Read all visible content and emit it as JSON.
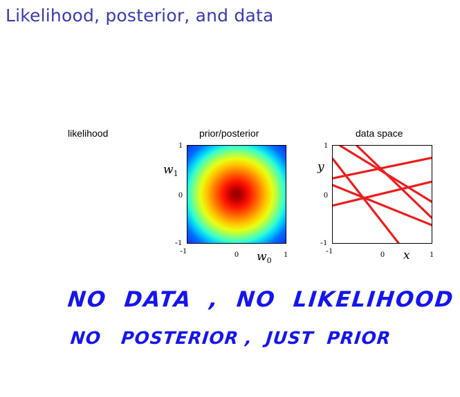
{
  "slide": {
    "title": "Likelihood, posterior, and data"
  },
  "panels": {
    "likelihood": {
      "title": "likelihood"
    },
    "posterior": {
      "title": "prior/posterior",
      "y_label": "w",
      "y_sub": "1",
      "x_label": "w",
      "x_sub": "0",
      "ticks": {
        "y_top": "1",
        "y_mid": "0",
        "y_bottom": "-1",
        "x_left": "-1",
        "x_mid": "0",
        "x_right": "1"
      }
    },
    "data_space": {
      "title": "data space",
      "y_label": "y",
      "x_label": "x",
      "ticks": {
        "y_top": "1",
        "y_mid": "0",
        "y_bottom": "-1",
        "x_left": "-1",
        "x_mid": "0",
        "x_right": "1"
      },
      "line_color": "#ee1c1c"
    }
  },
  "chart_data": [
    {
      "type": "heatmap",
      "title": "prior/posterior",
      "xlabel": "w0",
      "ylabel": "w1",
      "xlim": [
        -1,
        1
      ],
      "ylim": [
        -1,
        1
      ],
      "description_values": {
        "peak_at": [
          0,
          0
        ],
        "colormap": "jet",
        "shape": "isotropic gaussian"
      }
    },
    {
      "type": "line",
      "title": "data space",
      "xlabel": "x",
      "ylabel": "y",
      "xlim": [
        -1,
        1
      ],
      "ylim": [
        -1,
        1
      ],
      "series": [
        {
          "x": [
            -1,
            0.33
          ],
          "y": [
            0.73,
            -1
          ]
        },
        {
          "x": [
            -1,
            1
          ],
          "y": [
            0.33,
            0.75
          ]
        },
        {
          "x": [
            -1,
            1
          ],
          "y": [
            0.19,
            -0.63
          ]
        },
        {
          "x": [
            -0.51,
            1
          ],
          "y": [
            1,
            -0.48
          ]
        },
        {
          "x": [
            -0.85,
            1
          ],
          "y": [
            1,
            -0.15
          ]
        },
        {
          "x": [
            -1,
            1
          ],
          "y": [
            -0.23,
            0.26
          ]
        }
      ]
    }
  ],
  "annotation": {
    "line1": "NO  DATA  ,  NO  LIKELIHOOD ,",
    "line2": "NO   POSTERIOR ,  JUST  PRIOR"
  }
}
